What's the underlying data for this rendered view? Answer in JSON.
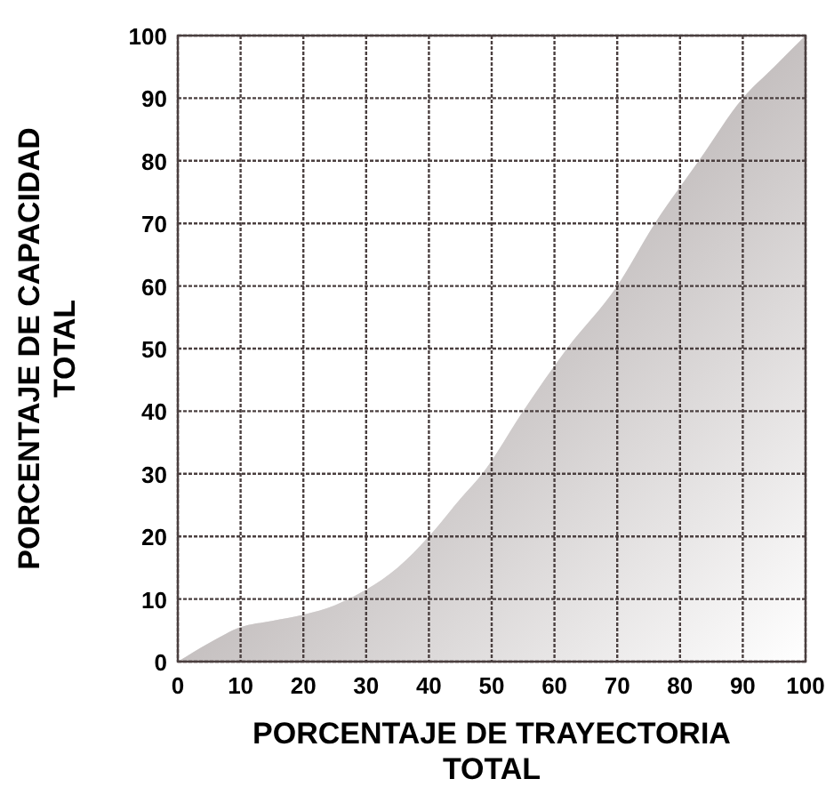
{
  "chart_data": {
    "type": "area",
    "xlabel": "PORCENTAJE DE TRAYECTORIA TOTAL",
    "ylabel": "PORCENTAJE DE CAPACIDAD TOTAL",
    "x": [
      0,
      5,
      10,
      15,
      20,
      25,
      30,
      35,
      40,
      45,
      48.5,
      55,
      62,
      70,
      76,
      83,
      90,
      95,
      100
    ],
    "series": [
      {
        "color": "#8c8282",
        "values": [
          0,
          3,
          5.5,
          6.5,
          7.5,
          9,
          11.5,
          15,
          20,
          26,
          30,
          40,
          50,
          60,
          70,
          80,
          90,
          95,
          100
        ]
      }
    ],
    "xlim": [
      0,
      100
    ],
    "ylim": [
      0,
      100
    ],
    "xticks": [
      0,
      10,
      20,
      30,
      40,
      50,
      60,
      70,
      80,
      90,
      100
    ],
    "yticks": [
      0,
      10,
      20,
      30,
      40,
      50,
      60,
      70,
      80,
      90,
      100
    ],
    "grid": true
  }
}
